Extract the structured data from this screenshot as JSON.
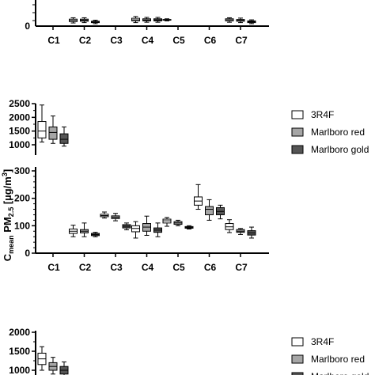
{
  "legend": {
    "items": [
      {
        "label": "3R4F",
        "color": "#ffffff"
      },
      {
        "label": "Marlboro red",
        "color": "#a6a6a6"
      },
      {
        "label": "Marlboro gold",
        "color": "#555555"
      }
    ]
  },
  "chart_data": [
    {
      "type": "box",
      "title": "",
      "xlabel": "",
      "ylabel": "",
      "categories": [
        "C1",
        "C2",
        "C3",
        "C4",
        "C5",
        "C6",
        "C7"
      ],
      "ylim": [
        0,
        150
      ],
      "yticks": [],
      "grid": false,
      "legend_placement": "none",
      "series": [
        {
          "name": "3R4F",
          "color": "#ffffff",
          "boxes": [
            null,
            {
              "min": 18,
              "q1": 26,
              "median": 33,
              "q3": 40,
              "max": 48
            },
            null,
            {
              "min": 20,
              "q1": 30,
              "median": 36,
              "q3": 45,
              "max": 55
            },
            {
              "min": 30,
              "q1": 34,
              "median": 36,
              "q3": 38,
              "max": 42
            },
            null,
            {
              "min": 22,
              "q1": 30,
              "median": 36,
              "q3": 42,
              "max": 48
            }
          ]
        },
        {
          "name": "Marlboro red",
          "color": "#a6a6a6",
          "boxes": [
            null,
            {
              "min": 20,
              "q1": 28,
              "median": 34,
              "q3": 40,
              "max": 48
            },
            null,
            {
              "min": 22,
              "q1": 30,
              "median": 35,
              "q3": 42,
              "max": 50
            },
            null,
            null,
            {
              "min": 20,
              "q1": 28,
              "median": 33,
              "q3": 38,
              "max": 46
            }
          ]
        },
        {
          "name": "Marlboro gold",
          "color": "#555555",
          "boxes": [
            null,
            {
              "min": 14,
              "q1": 20,
              "median": 24,
              "q3": 28,
              "max": 34
            },
            null,
            {
              "min": 22,
              "q1": 30,
              "median": 35,
              "q3": 42,
              "max": 50
            },
            null,
            null,
            {
              "min": 14,
              "q1": 20,
              "median": 25,
              "q3": 30,
              "max": 36
            }
          ]
        }
      ]
    },
    {
      "type": "box",
      "title": "",
      "xlabel": "",
      "ylabel": "C_mean PM2.5 [µg/m³]",
      "ylabel_parts": {
        "main": "C",
        "sub1": "mean",
        "mid": " PM",
        "sub2": "2.5",
        "unit": " [µg/m",
        "sup": "3",
        "close": "]"
      },
      "categories": [
        "C1",
        "C2",
        "C3",
        "C4",
        "C5",
        "C6",
        "C7"
      ],
      "axis_break": true,
      "ylim_lower": [
        0,
        300
      ],
      "ylim_upper": [
        700,
        2500
      ],
      "yticks_lower": [
        0,
        100,
        200,
        300
      ],
      "yticks_upper": [
        1000,
        1500,
        2000,
        2500
      ],
      "grid": false,
      "legend_placement": "right",
      "series": [
        {
          "name": "3R4F",
          "color": "#ffffff",
          "boxes": [
            {
              "min": 1100,
              "q1": 1250,
              "median": 1500,
              "q3": 1850,
              "max": 2450
            },
            {
              "min": 60,
              "q1": 72,
              "median": 80,
              "q3": 88,
              "max": 102
            },
            {
              "min": 128,
              "q1": 133,
              "median": 137,
              "q3": 142,
              "max": 150
            },
            {
              "min": 55,
              "q1": 78,
              "median": 90,
              "q3": 100,
              "max": 115
            },
            {
              "min": 98,
              "q1": 110,
              "median": 118,
              "q3": 124,
              "max": 130
            },
            {
              "min": 160,
              "q1": 175,
              "median": 190,
              "q3": 205,
              "max": 250
            },
            {
              "min": 75,
              "q1": 86,
              "median": 96,
              "q3": 108,
              "max": 122
            }
          ]
        },
        {
          "name": "Marlboro red",
          "color": "#a6a6a6",
          "boxes": [
            {
              "min": 1050,
              "q1": 1200,
              "median": 1450,
              "q3": 1650,
              "max": 2050
            },
            {
              "min": 60,
              "q1": 74,
              "median": 80,
              "q3": 86,
              "max": 110
            },
            {
              "min": 118,
              "q1": 126,
              "median": 131,
              "q3": 136,
              "max": 145
            },
            {
              "min": 65,
              "q1": 80,
              "median": 95,
              "q3": 108,
              "max": 135
            },
            {
              "min": 100,
              "q1": 105,
              "median": 110,
              "q3": 115,
              "max": 120
            },
            {
              "min": 120,
              "q1": 140,
              "median": 160,
              "q3": 170,
              "max": 195
            },
            {
              "min": 68,
              "q1": 76,
              "median": 80,
              "q3": 86,
              "max": 90
            }
          ]
        },
        {
          "name": "Marlboro gold",
          "color": "#555555",
          "boxes": [
            {
              "min": 950,
              "q1": 1050,
              "median": 1200,
              "q3": 1400,
              "max": 1650
            },
            {
              "min": 60,
              "q1": 64,
              "median": 68,
              "q3": 72,
              "max": 76
            },
            {
              "min": 85,
              "q1": 92,
              "median": 98,
              "q3": 104,
              "max": 110
            },
            {
              "min": 60,
              "q1": 76,
              "median": 84,
              "q3": 92,
              "max": 110
            },
            {
              "min": 88,
              "q1": 91,
              "median": 94,
              "q3": 97,
              "max": 100
            },
            {
              "min": 125,
              "q1": 140,
              "median": 152,
              "q3": 166,
              "max": 175
            },
            {
              "min": 55,
              "q1": 66,
              "median": 74,
              "q3": 82,
              "max": 95
            }
          ]
        }
      ]
    },
    {
      "type": "box",
      "title": "",
      "xlabel": "",
      "ylabel": "",
      "categories": [],
      "ylim": [
        700,
        2000
      ],
      "yticks": [
        1000,
        1500,
        2000
      ],
      "grid": false,
      "legend_placement": "right",
      "series": [
        {
          "name": "3R4F",
          "color": "#ffffff",
          "boxes": [
            {
              "min": 1000,
              "q1": 1150,
              "median": 1300,
              "q3": 1450,
              "max": 1620
            }
          ]
        },
        {
          "name": "Marlboro red",
          "color": "#a6a6a6",
          "boxes": [
            {
              "min": 900,
              "q1": 1000,
              "median": 1100,
              "q3": 1200,
              "max": 1340
            }
          ]
        },
        {
          "name": "Marlboro gold",
          "color": "#555555",
          "boxes": [
            {
              "min": 800,
              "q1": 900,
              "median": 1000,
              "q3": 1100,
              "max": 1220
            }
          ]
        }
      ]
    }
  ]
}
